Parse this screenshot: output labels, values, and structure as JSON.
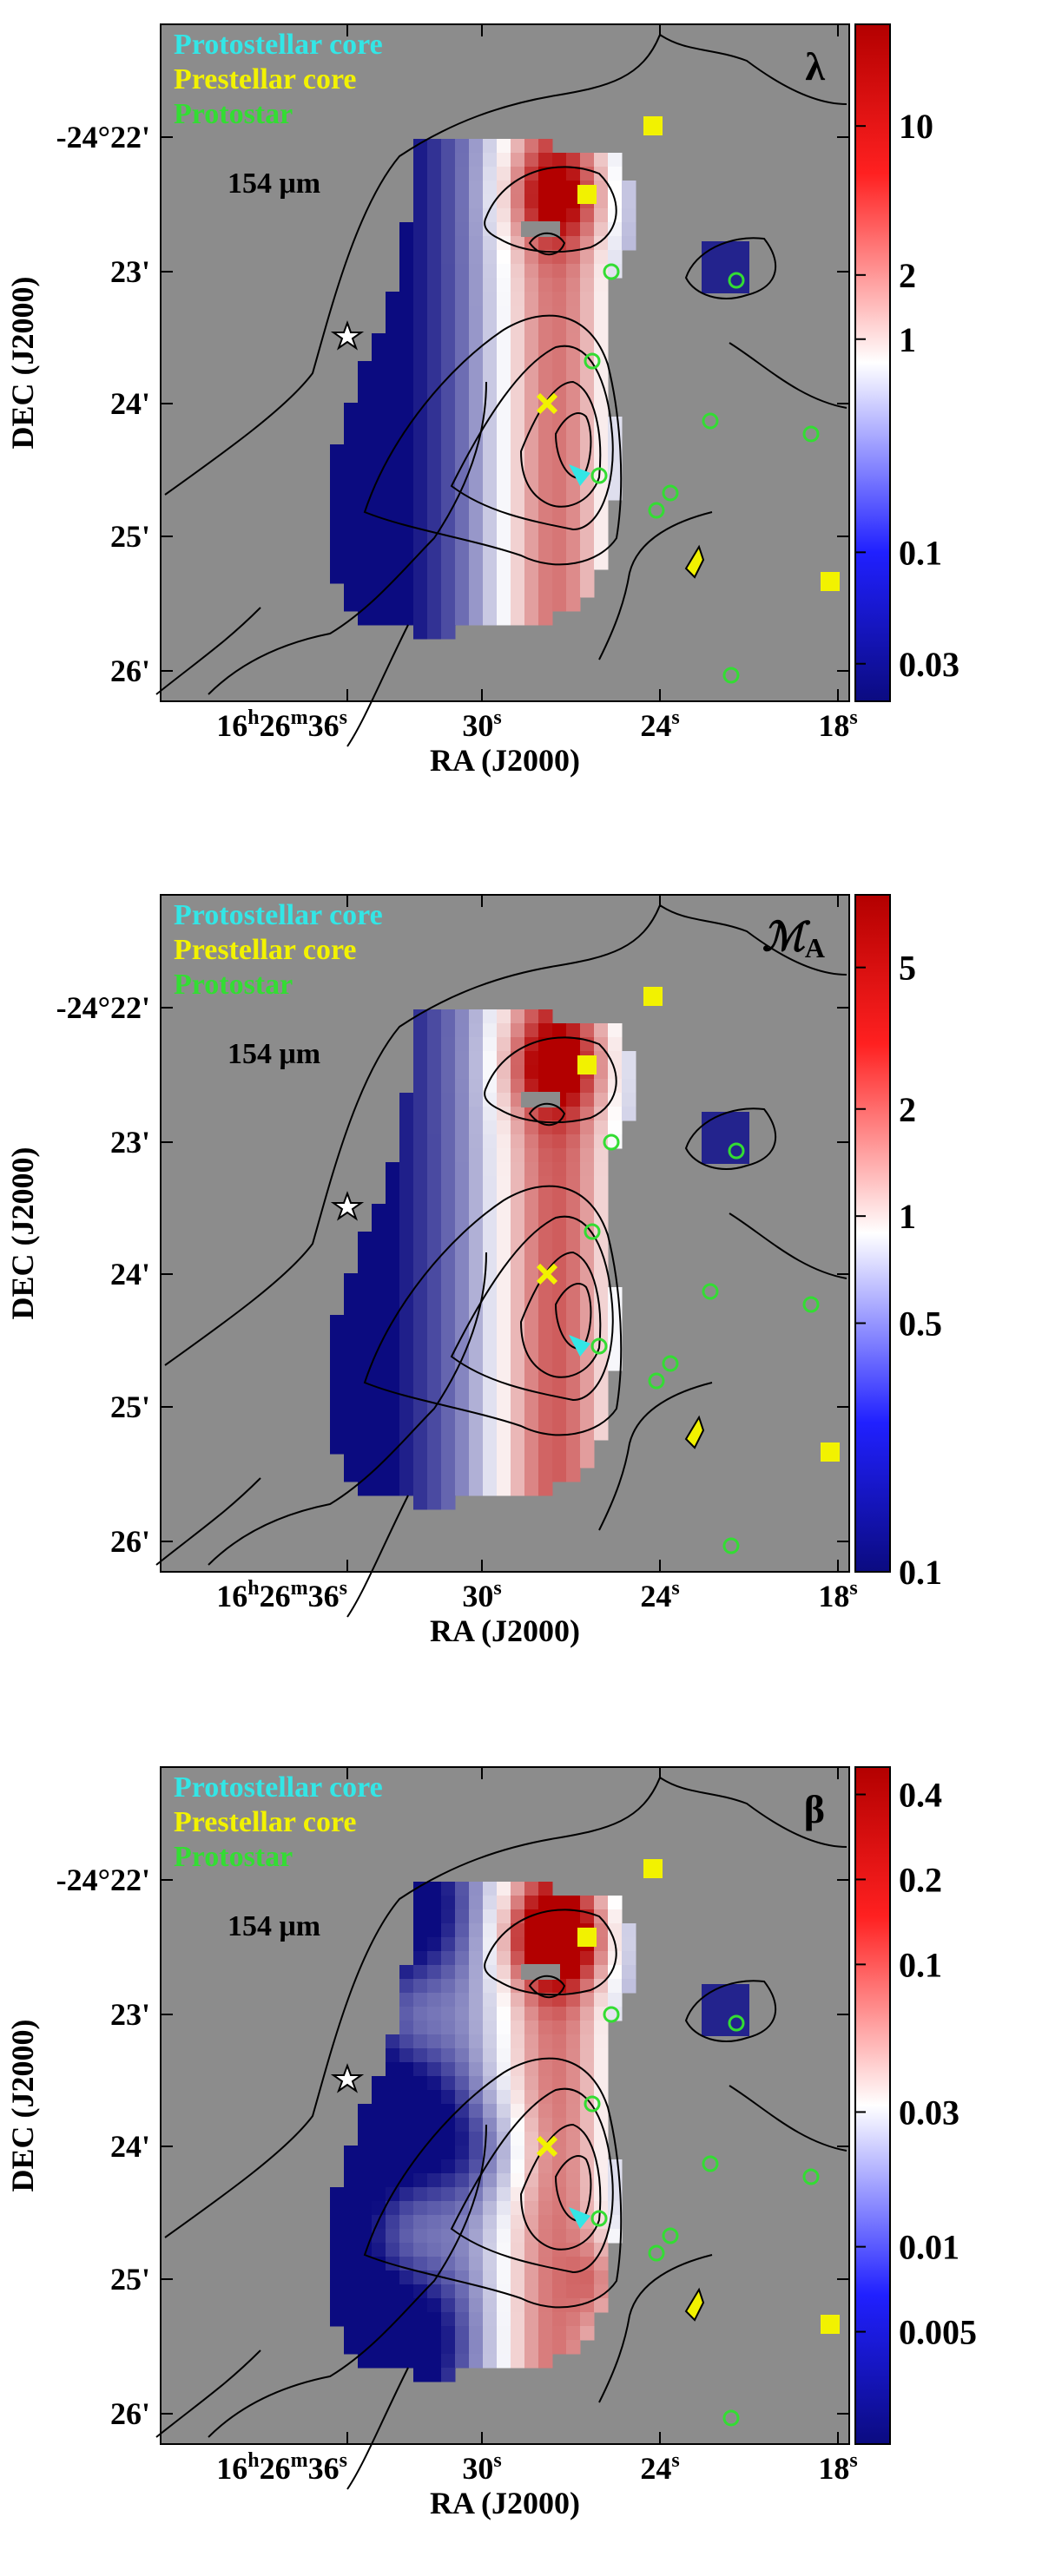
{
  "chart_data": [
    {
      "type": "heatmap",
      "symbol": "λ",
      "symbol_sub": "",
      "wavelength_label": "154 μm",
      "xlabel": "RA (J2000)",
      "ylabel": "DEC (J2000)",
      "x_ticks": [
        {
          "h": "16",
          "m": "26",
          "s": "36"
        },
        {
          "s": "30"
        },
        {
          "s": "24"
        },
        {
          "s": "18"
        }
      ],
      "y_ticks": [
        "-24°22'",
        "23'",
        "24'",
        "25'",
        "26'"
      ],
      "legend": [
        {
          "label": "Protostellar core",
          "color": "#33e6e6"
        },
        {
          "label": "Prestellar core",
          "color": "#f2f200"
        },
        {
          "label": "Protostar",
          "color": "#33dd33"
        }
      ],
      "colorbar": {
        "scale": "log",
        "min": 0.02,
        "max": 30,
        "ticks": [
          "10",
          "2",
          "1",
          "0.1",
          "0.03"
        ],
        "tick_values": [
          10,
          2,
          1,
          0.1,
          0.03
        ]
      },
      "colors": {
        "low": "#0b0b80",
        "mid": "#ffffff",
        "high": "#b30000",
        "background": "#8c8c8c"
      }
    },
    {
      "type": "heatmap",
      "symbol": "ℳ",
      "symbol_sub": "A",
      "wavelength_label": "154 μm",
      "xlabel": "RA (J2000)",
      "ylabel": "DEC (J2000)",
      "x_ticks": [
        {
          "h": "16",
          "m": "26",
          "s": "36"
        },
        {
          "s": "30"
        },
        {
          "s": "24"
        },
        {
          "s": "18"
        }
      ],
      "y_ticks": [
        "-24°22'",
        "23'",
        "24'",
        "25'",
        "26'"
      ],
      "legend": [
        {
          "label": "Protostellar core",
          "color": "#33e6e6"
        },
        {
          "label": "Prestellar core",
          "color": "#f2f200"
        },
        {
          "label": "Protostar",
          "color": "#33dd33"
        }
      ],
      "colorbar": {
        "scale": "log",
        "min": 0.1,
        "max": 8,
        "ticks": [
          "5",
          "2",
          "1",
          "0.5",
          "0.1"
        ],
        "tick_values": [
          5,
          2,
          1,
          0.5,
          0.1
        ]
      },
      "colors": {
        "low": "#0b0b80",
        "mid": "#ffffff",
        "high": "#b30000",
        "background": "#8c8c8c"
      }
    },
    {
      "type": "heatmap",
      "symbol": "β",
      "symbol_sub": "",
      "wavelength_label": "154 μm",
      "xlabel": "RA (J2000)",
      "ylabel": "DEC (J2000)",
      "x_ticks": [
        {
          "h": "16",
          "m": "26",
          "s": "36"
        },
        {
          "s": "30"
        },
        {
          "s": "24"
        },
        {
          "s": "18"
        }
      ],
      "y_ticks": [
        "-24°22'",
        "23'",
        "24'",
        "25'",
        "26'"
      ],
      "legend": [
        {
          "label": "Protostellar core",
          "color": "#33e6e6"
        },
        {
          "label": "Prestellar core",
          "color": "#f2f200"
        },
        {
          "label": "Protostar",
          "color": "#33dd33"
        }
      ],
      "colorbar": {
        "scale": "log",
        "min": 0.002,
        "max": 0.5,
        "ticks": [
          "0.4",
          "0.2",
          "0.1",
          "0.03",
          "0.01",
          "0.005"
        ],
        "tick_values": [
          0.4,
          0.2,
          0.1,
          0.03,
          0.01,
          0.005
        ]
      },
      "colors": {
        "low": "#0b0b80",
        "mid": "#ffffff",
        "high": "#b30000",
        "background": "#8c8c8c"
      }
    }
  ]
}
